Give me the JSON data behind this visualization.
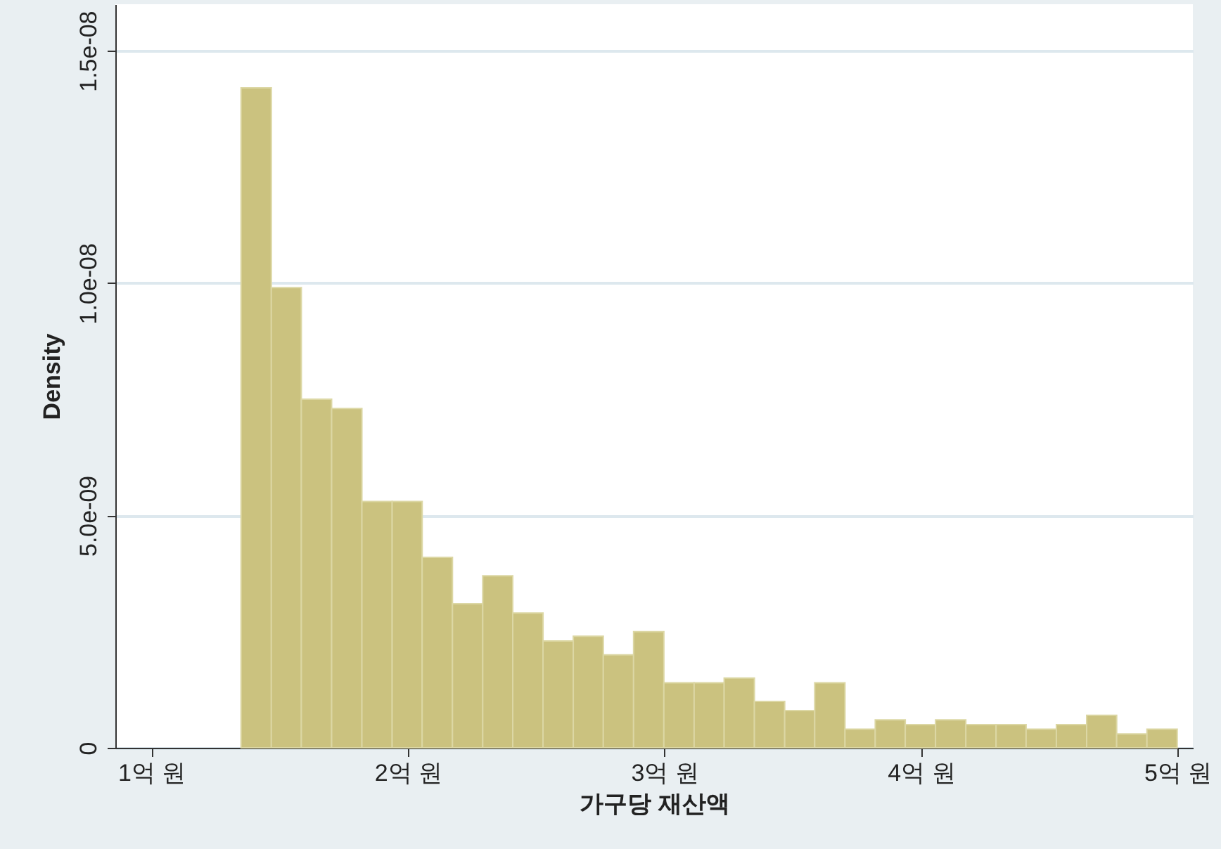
{
  "chart_data": {
    "type": "histogram",
    "xlabel": "가구당 재산액",
    "ylabel": "Density",
    "bins": [
      1.35,
      1.468,
      1.585,
      1.703,
      1.821,
      1.939,
      2.056,
      2.174,
      2.292,
      2.409,
      2.527,
      2.645,
      2.762,
      2.88,
      2.998,
      3.116,
      3.233,
      3.351,
      3.469,
      3.586,
      3.704,
      3.822,
      3.939,
      4.057,
      4.175,
      4.293,
      4.41,
      4.528,
      4.646,
      4.763,
      4.881,
      4.999
    ],
    "values": [
      1.42e-08,
      9.9e-09,
      7.5e-09,
      7.3e-09,
      5.3e-09,
      5.3e-09,
      4.1e-09,
      3.1e-09,
      3.7e-09,
      2.9e-09,
      2.3e-09,
      2.4e-09,
      2e-09,
      2.5e-09,
      1.4e-09,
      1.4e-09,
      1.5e-09,
      1e-09,
      8e-10,
      1.4e-09,
      4e-10,
      6e-10,
      5e-10,
      6e-10,
      5e-10,
      5e-10,
      4e-10,
      5e-10,
      7e-10,
      3e-10,
      4e-10
    ],
    "color": "#cbc27f",
    "xlim": [
      0.86,
      5.06
    ],
    "ylim": [
      0,
      1.6e-08
    ],
    "xticks": [
      {
        "value": 1,
        "label": "1억 원"
      },
      {
        "value": 2,
        "label": "2억 원"
      },
      {
        "value": 3,
        "label": "3억 원"
      },
      {
        "value": 4,
        "label": "4억 원"
      },
      {
        "value": 5,
        "label": "5억 원"
      }
    ],
    "yticks": [
      {
        "value": 0,
        "label": "0"
      },
      {
        "value": 5e-09,
        "label": "5.0e-09"
      },
      {
        "value": 1e-08,
        "label": "1.0e-08"
      },
      {
        "value": 1.5e-08,
        "label": "1.5e-08"
      }
    ],
    "grid": "y"
  }
}
